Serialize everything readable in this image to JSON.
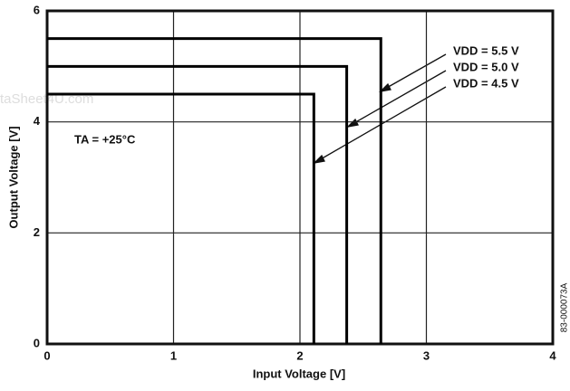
{
  "chart_data": {
    "type": "line",
    "x_label": "Input Voltage [V]",
    "y_label": "Output Voltage [V]",
    "xlim": [
      0,
      4
    ],
    "xticks": [
      0,
      1,
      2,
      3,
      4
    ],
    "ylim": [
      0,
      6
    ],
    "yticks": [
      0,
      2,
      4,
      6
    ],
    "grid": true,
    "series": [
      {
        "name": "VDD = 5.5 V",
        "color": "#000000",
        "x": [
          0,
          2.64,
          2.64
        ],
        "values": [
          5.5,
          5.5,
          0
        ]
      },
      {
        "name": "VDD = 5.0 V",
        "color": "#000000",
        "x": [
          0,
          2.37,
          2.37
        ],
        "values": [
          5.0,
          5.0,
          0
        ]
      },
      {
        "name": "VDD = 4.5 V",
        "color": "#000000",
        "x": [
          0,
          2.11,
          2.11
        ],
        "values": [
          4.5,
          4.5,
          0
        ]
      }
    ],
    "annotations": [
      "TA = +25°C",
      "83-000073A",
      "taSheet4U.com"
    ]
  }
}
